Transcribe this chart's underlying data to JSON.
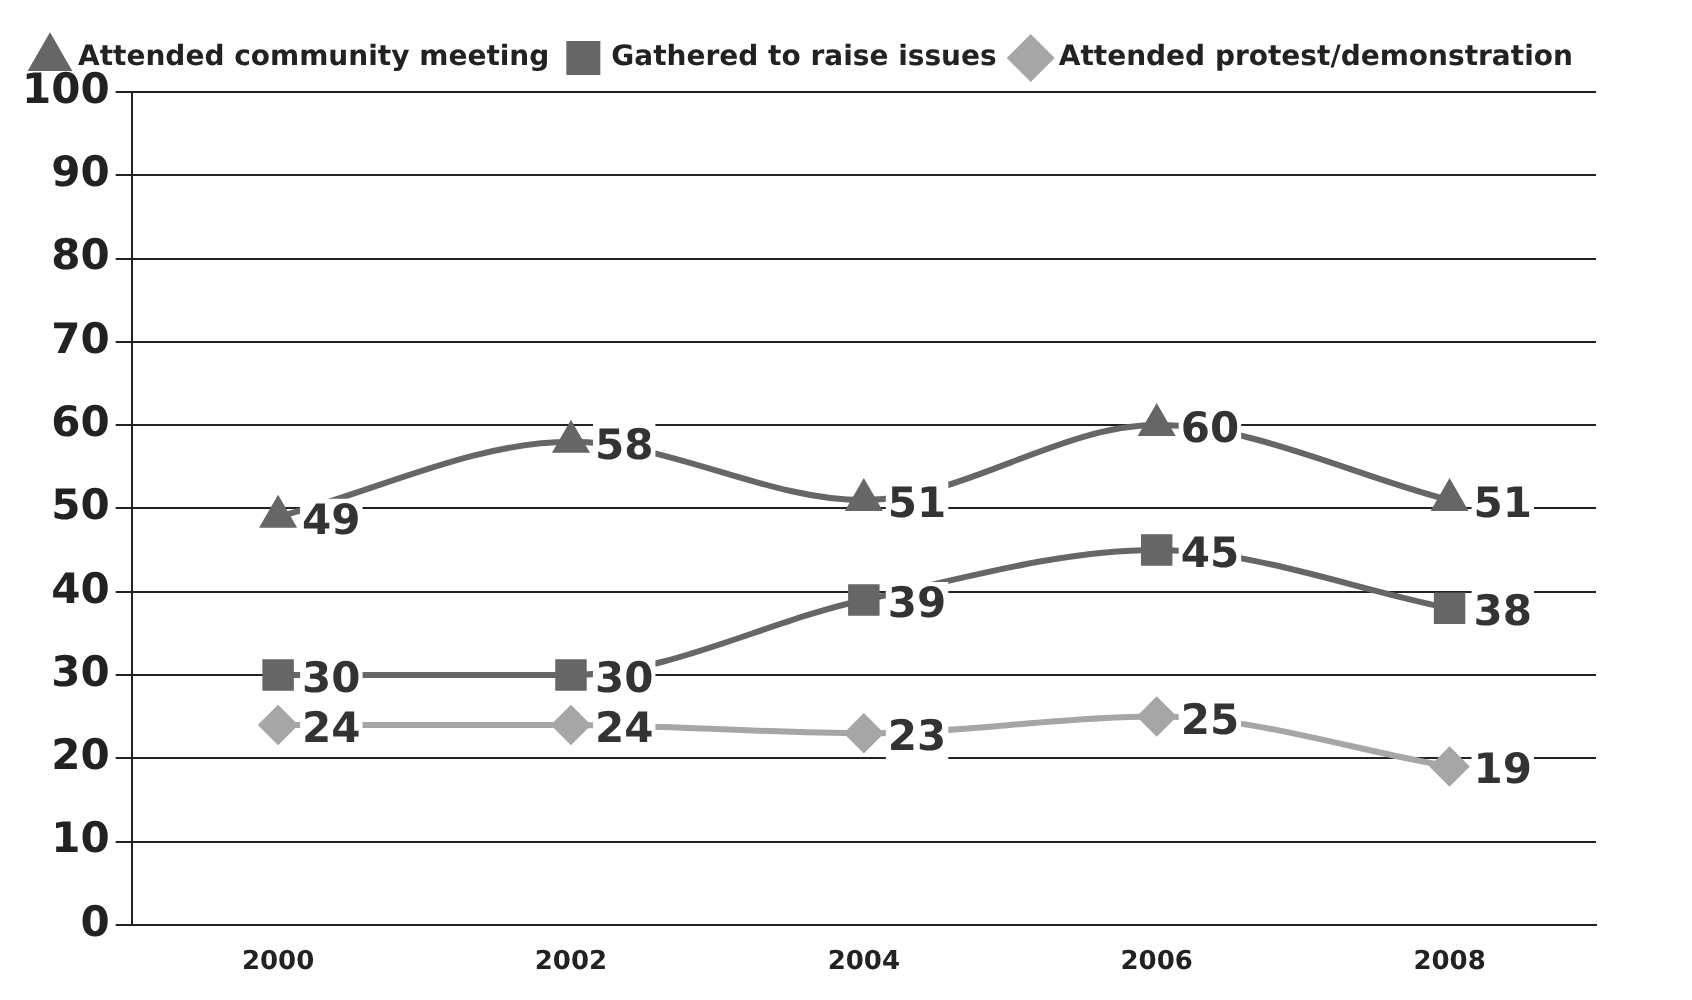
{
  "chart_data": {
    "type": "line",
    "categories": [
      "2000",
      "2002",
      "2004",
      "2006",
      "2008"
    ],
    "series": [
      {
        "name": "Attended community meeting",
        "color": "#666666",
        "marker": "triangle",
        "values": [
          49,
          58,
          51,
          60,
          51
        ]
      },
      {
        "name": "Gathered to raise issues",
        "color": "#666666",
        "marker": "square",
        "values": [
          30,
          30,
          39,
          45,
          38
        ]
      },
      {
        "name": "Attended protest/demonstration",
        "color": "#a6a6a6",
        "marker": "diamond",
        "values": [
          24,
          24,
          23,
          25,
          19
        ]
      }
    ],
    "ylim": [
      0,
      100
    ],
    "yticks": [
      0,
      10,
      20,
      30,
      40,
      50,
      60,
      70,
      80,
      90,
      100
    ],
    "grid": "y",
    "legend": "top",
    "data_labels": true
  }
}
